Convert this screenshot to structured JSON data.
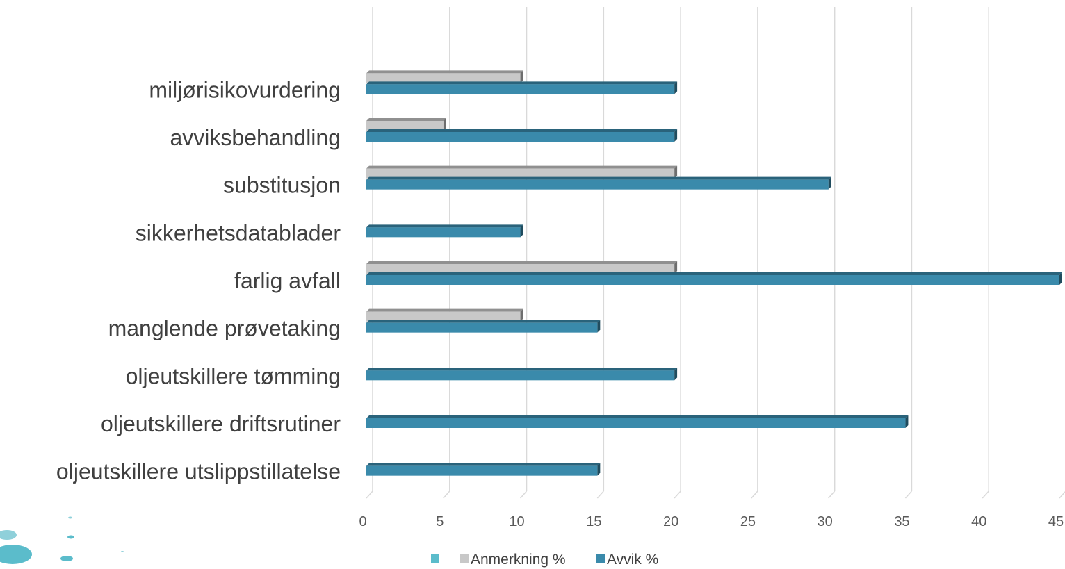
{
  "chart_data": {
    "type": "bar",
    "orientation": "horizontal",
    "style": "3d-clustered",
    "categories": [
      "miljørisikovurdering",
      "avviksbehandling",
      "substitusjon",
      "sikkerhetsdatablader",
      "farlig avfall",
      "manglende prøvetaking",
      "oljeutskillere tømming",
      "oljeutskillere driftsrutiner",
      "oljeutskillere utslippstillatelse"
    ],
    "series": [
      {
        "name": "Anmerkning %",
        "color": "#c8c8c8",
        "values": [
          10,
          5,
          20,
          0,
          20,
          10,
          0,
          0,
          0
        ]
      },
      {
        "name": "Avvik %",
        "color": "#3a8aab",
        "values": [
          20,
          20,
          30,
          10,
          45,
          15,
          20,
          35,
          15
        ]
      }
    ],
    "xlim": [
      0,
      45
    ],
    "xticks": [
      "0",
      "5",
      "10",
      "15",
      "20",
      "25",
      "30",
      "35",
      "40",
      "45"
    ],
    "grid": true,
    "legend": {
      "placement": "bottom",
      "entries": [
        "",
        "Anmerkning %",
        "Avvik %"
      ],
      "colors": [
        "#5bbccb",
        "#c8c8c8",
        "#3a8aab"
      ]
    }
  }
}
